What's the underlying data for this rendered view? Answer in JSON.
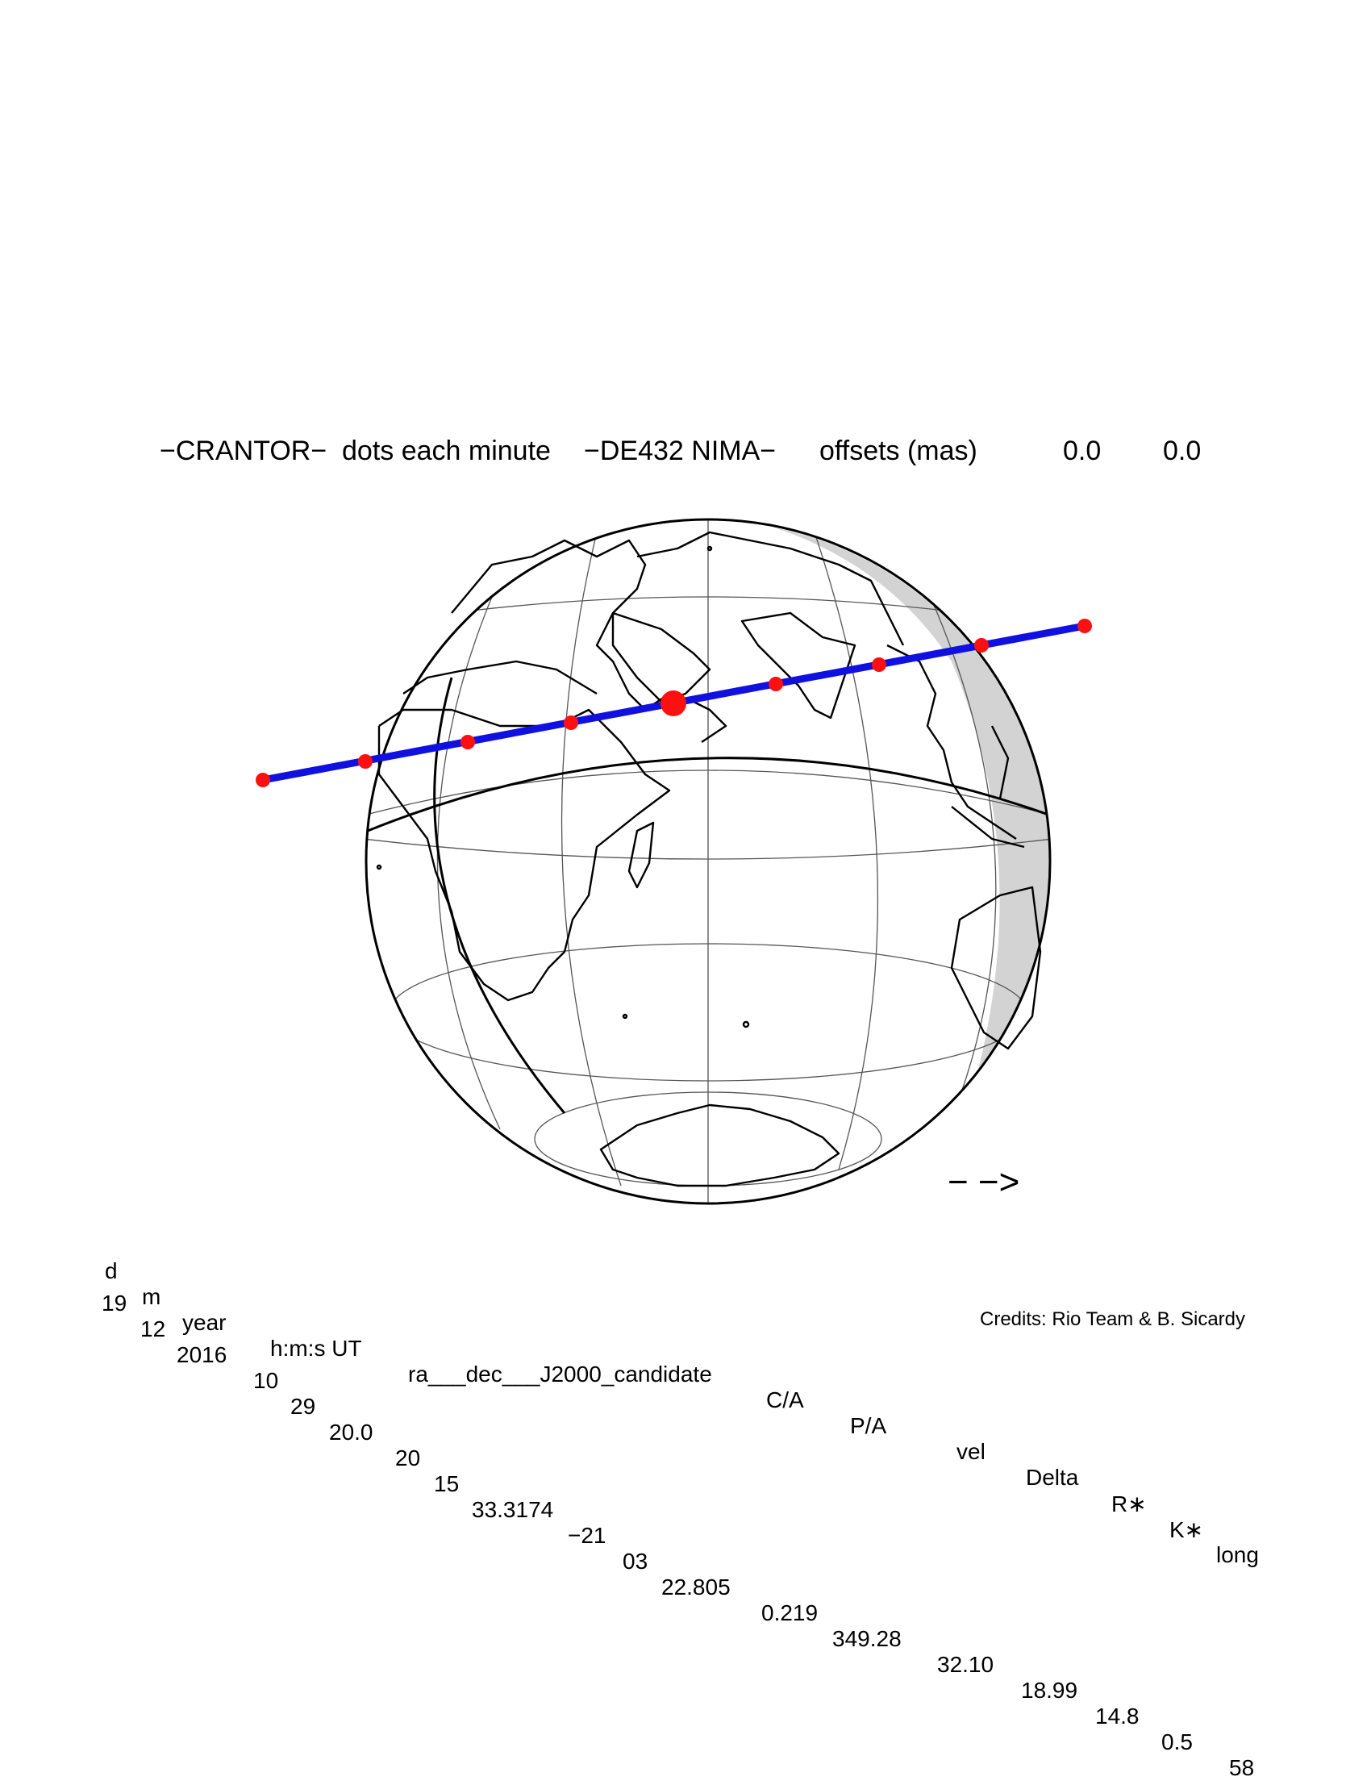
{
  "title": {
    "object": "−CRANTOR−",
    "dots": "dots each minute",
    "ephem": "−DE432 NIMA−",
    "offsets_label": "offsets (mas)",
    "offset_ra": "0.0",
    "offset_dec": "0.0"
  },
  "colors": {
    "path": "#1010e0",
    "dots": "#ff1010",
    "night": "#d3d3d3",
    "grid": "#555555"
  },
  "direction_arrow": "− −>",
  "table": {
    "headers": [
      "d",
      "m",
      "year",
      "h:m:s UT",
      "ra___dec___J2000_candidate",
      "C/A",
      "P/A",
      "vel",
      "Delta",
      "R∗",
      "K∗",
      "long"
    ],
    "values": [
      "19",
      "12",
      "2016",
      "10",
      "29",
      "20.0",
      "20",
      "15",
      "33.3174",
      "−21",
      "03",
      "22.805",
      "0.219",
      "349.28",
      "32.10",
      "18.99",
      "14.8",
      "0.5",
      "58"
    ]
  },
  "credits": "Credits: Rio Team & B. Sicardy",
  "occultation_track": {
    "closest_approach_index": 4,
    "minute_dots_count": 9
  }
}
